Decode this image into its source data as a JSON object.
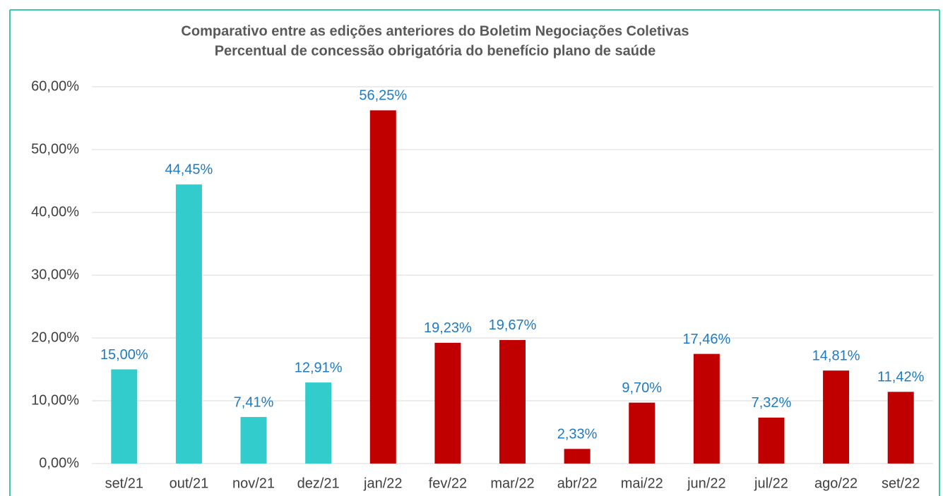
{
  "chart_data": {
    "type": "bar",
    "title": "Comparativo entre as edições anteriores do Boletim Negociações Coletivas",
    "subtitle": "Percentual de concessão obrigatória do benefício plano de saúde",
    "categories": [
      "set/21",
      "out/21",
      "nov/21",
      "dez/21",
      "jan/22",
      "fev/22",
      "mar/22",
      "abr/22",
      "mai/22",
      "jun/22",
      "jul/22",
      "ago/22",
      "set/22"
    ],
    "values": [
      15.0,
      44.45,
      7.41,
      12.91,
      56.25,
      19.23,
      19.67,
      2.33,
      9.7,
      17.46,
      7.32,
      14.81,
      11.42
    ],
    "value_labels": [
      "15,00%",
      "44,45%",
      "7,41%",
      "12,91%",
      "56,25%",
      "19,23%",
      "19,67%",
      "2,33%",
      "9,70%",
      "17,46%",
      "7,32%",
      "14,81%",
      "11,42%"
    ],
    "colors": [
      "#33cccc",
      "#33cccc",
      "#33cccc",
      "#33cccc",
      "#c00000",
      "#c00000",
      "#c00000",
      "#c00000",
      "#c00000",
      "#c00000",
      "#c00000",
      "#c00000",
      "#c00000"
    ],
    "ylim": [
      0,
      60
    ],
    "yticks": [
      {
        "value": 0,
        "label": "0,00%"
      },
      {
        "value": 10,
        "label": "10,00%"
      },
      {
        "value": 20,
        "label": "20,00%"
      },
      {
        "value": 30,
        "label": "30,00%"
      },
      {
        "value": 40,
        "label": "40,00%"
      },
      {
        "value": 50,
        "label": "50,00%"
      },
      {
        "value": 60,
        "label": "60,00%"
      }
    ],
    "grid": true
  }
}
